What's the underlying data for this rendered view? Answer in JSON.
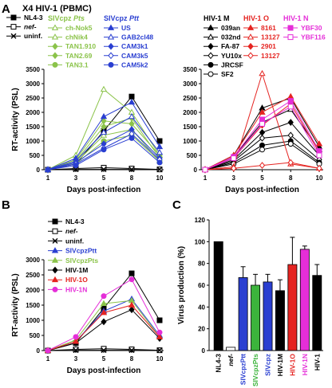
{
  "figure": {
    "title": "X4 HIV-1 (PBMC)",
    "panel_labels": [
      "A",
      "B",
      "C"
    ]
  },
  "chart_data": [
    {
      "id": "A-left",
      "type": "line",
      "ylabel": "RT-activity (PSL)",
      "xlabel": "Days post-infection",
      "x": [
        1,
        3,
        5,
        8,
        10
      ],
      "ylim": [
        0,
        3500
      ],
      "yticks": [
        0,
        500,
        1000,
        1500,
        2000,
        2500,
        3000,
        3500
      ],
      "legend_groups": [
        {
          "heading": "",
          "color": "#000000"
        },
        {
          "heading": "SIVcpz Pts",
          "color": "#8bc34a"
        },
        {
          "heading": "SIVcpz Ptt",
          "color": "#2a3fd1"
        }
      ],
      "series": [
        {
          "name": "NL4-3",
          "group": 0,
          "color": "#000000",
          "marker": "square-filled",
          "values": [
            0,
            200,
            1350,
            2550,
            1000
          ]
        },
        {
          "name": "nef-",
          "group": 0,
          "color": "#000000",
          "marker": "square-open",
          "values": [
            0,
            40,
            70,
            40,
            10
          ]
        },
        {
          "name": "uninf.",
          "group": 0,
          "color": "#000000",
          "marker": "x",
          "values": [
            0,
            10,
            10,
            10,
            10
          ]
        },
        {
          "name": "ch-Nok5",
          "group": 1,
          "color": "#8bc34a",
          "marker": "triangle-open",
          "values": [
            0,
            500,
            2800,
            2000,
            500
          ]
        },
        {
          "name": "chNik4",
          "group": 1,
          "color": "#8bc34a",
          "marker": "triangle-open",
          "values": [
            0,
            250,
            1200,
            1400,
            300
          ]
        },
        {
          "name": "TAN1.910",
          "group": 1,
          "color": "#8bc34a",
          "marker": "diamond-filled",
          "values": [
            0,
            300,
            1500,
            1800,
            400
          ]
        },
        {
          "name": "TAN2.69",
          "group": 1,
          "color": "#8bc34a",
          "marker": "diamond-filled",
          "values": [
            0,
            350,
            1700,
            1600,
            500
          ]
        },
        {
          "name": "TAN3.1",
          "group": 1,
          "color": "#8bc34a",
          "marker": "circle-filled",
          "values": [
            0,
            200,
            1000,
            1200,
            300
          ]
        },
        {
          "name": "US",
          "group": 2,
          "color": "#2a3fd1",
          "marker": "triangle-filled",
          "values": [
            0,
            400,
            1850,
            2350,
            800
          ]
        },
        {
          "name": "GAB2cl48",
          "group": 2,
          "color": "#2a3fd1",
          "marker": "triangle-open",
          "values": [
            0,
            300,
            1300,
            1850,
            600
          ]
        },
        {
          "name": "CAM3k1",
          "group": 2,
          "color": "#2a3fd1",
          "marker": "diamond-filled",
          "values": [
            0,
            250,
            900,
            1400,
            400
          ]
        },
        {
          "name": "CAM3k5",
          "group": 2,
          "color": "#2a3fd1",
          "marker": "diamond-open",
          "values": [
            0,
            200,
            750,
            1250,
            350
          ]
        },
        {
          "name": "CAM5k2",
          "group": 2,
          "color": "#2a3fd1",
          "marker": "circle-filled",
          "values": [
            0,
            150,
            700,
            1100,
            250
          ]
        }
      ]
    },
    {
      "id": "A-right",
      "type": "line",
      "ylabel": "",
      "xlabel": "Days post-infection",
      "x": [
        1,
        3,
        5,
        8,
        10
      ],
      "ylim": [
        0,
        3500
      ],
      "yticks": [
        0,
        500,
        1000,
        1500,
        2000,
        2500,
        3000,
        3500
      ],
      "legend_groups": [
        {
          "heading": "HIV-1 M",
          "color": "#000000"
        },
        {
          "heading": "HIV-1 O",
          "color": "#e52421"
        },
        {
          "heading": "HIV-1 N",
          "color": "#e52ed8"
        }
      ],
      "series": [
        {
          "name": "039an",
          "group": 0,
          "color": "#000000",
          "marker": "triangle-filled",
          "values": [
            0,
            500,
            2150,
            2500,
            800
          ]
        },
        {
          "name": "032nd",
          "group": 0,
          "color": "#000000",
          "marker": "triangle-open",
          "values": [
            0,
            450,
            1650,
            2100,
            700
          ]
        },
        {
          "name": "FA-87",
          "group": 0,
          "color": "#000000",
          "marker": "diamond-filled",
          "values": [
            0,
            350,
            1300,
            1650,
            500
          ]
        },
        {
          "name": "YU10x",
          "group": 0,
          "color": "#000000",
          "marker": "diamond-open",
          "values": [
            0,
            300,
            1100,
            1200,
            350
          ]
        },
        {
          "name": "JRCSF",
          "group": 0,
          "color": "#000000",
          "marker": "circle-filled",
          "values": [
            0,
            250,
            850,
            1000,
            250
          ]
        },
        {
          "name": "SF2",
          "group": 0,
          "color": "#000000",
          "marker": "circle-open",
          "values": [
            0,
            200,
            700,
            900,
            200
          ]
        },
        {
          "name": "8161",
          "group": 1,
          "color": "#e52421",
          "marker": "triangle-filled",
          "values": [
            0,
            500,
            2000,
            2550,
            900
          ]
        },
        {
          "name": "13127",
          "group": 1,
          "color": "#e52421",
          "marker": "triangle-open",
          "values": [
            0,
            100,
            3350,
            200,
            50
          ]
        },
        {
          "name": "2901",
          "group": 1,
          "color": "#e52421",
          "marker": "diamond-filled",
          "values": [
            0,
            400,
            1550,
            2300,
            600
          ]
        },
        {
          "name": "13127",
          "group": 1,
          "color": "#e52421",
          "marker": "diamond-open",
          "values": [
            0,
            50,
            150,
            250,
            50
          ]
        },
        {
          "name": "YBF30",
          "group": 2,
          "color": "#e52ed8",
          "marker": "square-filled",
          "values": [
            0,
            450,
            1750,
            2400,
            650
          ]
        },
        {
          "name": "YBF116",
          "group": 2,
          "color": "#e52ed8",
          "marker": "square-open",
          "values": [
            0,
            400,
            1600,
            2200,
            500
          ]
        }
      ]
    },
    {
      "id": "B",
      "type": "line",
      "ylabel": "RT-activity (PSL)",
      "xlabel": "Days post-infection",
      "x": [
        1,
        3,
        5,
        8,
        10
      ],
      "ylim": [
        0,
        3000
      ],
      "yticks": [
        0,
        500,
        1000,
        1500,
        2000,
        2500,
        3000
      ],
      "series": [
        {
          "name": "NL4-3",
          "color": "#000000",
          "marker": "square-filled",
          "values": [
            0,
            250,
            1400,
            2550,
            1000
          ]
        },
        {
          "name": "nef-",
          "color": "#000000",
          "marker": "square-open",
          "values": [
            0,
            40,
            60,
            40,
            10
          ]
        },
        {
          "name": "uninf.",
          "color": "#000000",
          "marker": "x",
          "values": [
            0,
            10,
            10,
            10,
            10
          ]
        },
        {
          "name": "SIVcpzPtt",
          "color": "#2a3fd1",
          "marker": "triangle-filled",
          "values": [
            0,
            300,
            1300,
            1700,
            500
          ]
        },
        {
          "name": "SIVcpzPts",
          "color": "#8bc34a",
          "marker": "triangle-filled",
          "values": [
            0,
            350,
            1550,
            1650,
            450
          ]
        },
        {
          "name": "HIV-1M",
          "color": "#000000",
          "marker": "diamond-filled",
          "values": [
            0,
            250,
            950,
            1350,
            400
          ]
        },
        {
          "name": "HIV-1O",
          "color": "#e52421",
          "marker": "triangle-filled",
          "values": [
            0,
            300,
            1250,
            1500,
            450
          ]
        },
        {
          "name": "HIV-1N",
          "color": "#e52ed8",
          "marker": "circle-filled",
          "values": [
            0,
            450,
            1800,
            2350,
            600
          ]
        }
      ]
    },
    {
      "id": "C",
      "type": "bar",
      "ylabel": "Virus production (%)",
      "xlabel": "",
      "ylim": [
        0,
        120
      ],
      "yticks": [
        0,
        20,
        40,
        60,
        80,
        100,
        120
      ],
      "categories": [
        "NL4-3",
        "nef-",
        "SIVcpzPtt",
        "SIVcpzPts",
        "SIVcpz",
        "HIV-1M",
        "HIV-1O",
        "HIV-1N",
        "HIV-1"
      ],
      "category_italic": [
        false,
        true,
        false,
        false,
        false,
        false,
        false,
        false,
        false
      ],
      "label_colors": [
        "#000000",
        "#000000",
        "#2a3fd1",
        "#3cb43c",
        "#2a3fd1",
        "#000000",
        "#e52421",
        "#e52ed8",
        "#000000"
      ],
      "values": [
        100,
        3,
        67,
        60,
        63,
        55,
        79,
        93,
        69
      ],
      "errors": [
        0,
        0,
        10,
        10,
        7,
        10,
        25,
        3,
        10
      ],
      "colors": [
        "#000000",
        "#ffffff",
        "#2a3fd1",
        "#3cb43c",
        "#2a3fd1",
        "#000000",
        "#e52421",
        "#e52ed8",
        "#000000"
      ]
    }
  ]
}
